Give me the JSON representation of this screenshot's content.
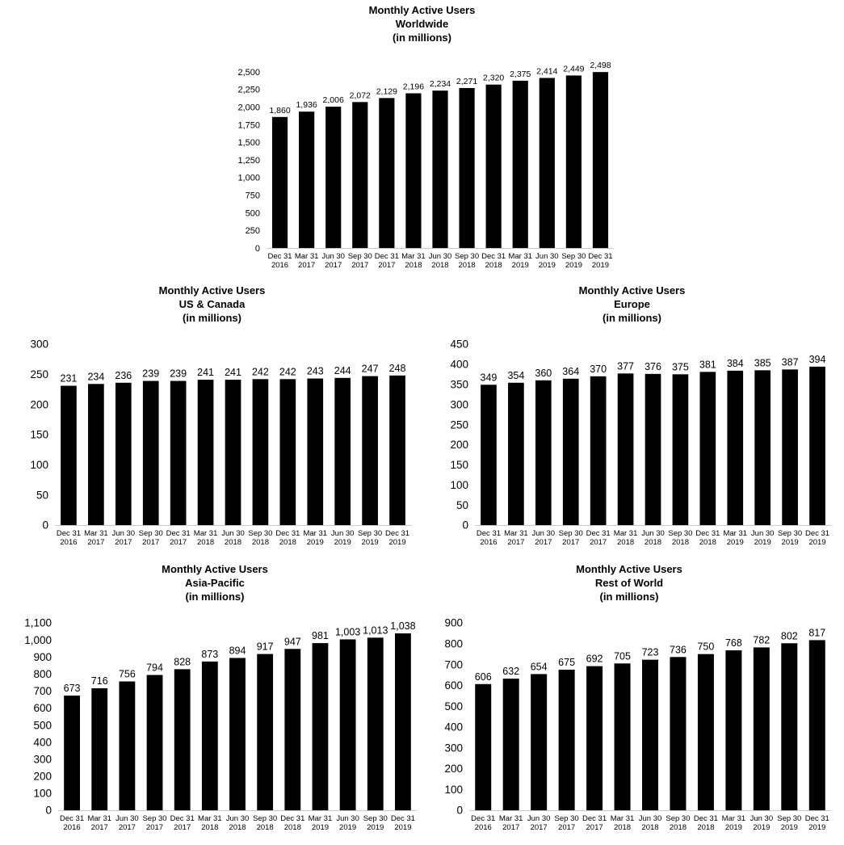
{
  "page": {
    "background": "#ffffff",
    "text_color": "#000000"
  },
  "chart_data": [
    {
      "id": "worldwide",
      "type": "bar",
      "title_lines": [
        "Monthly Active Users",
        "Worldwide",
        "(in millions)"
      ],
      "categories": [
        "Dec 31 2016",
        "Mar 31 2017",
        "Jun 30 2017",
        "Sep 30 2017",
        "Dec 31 2017",
        "Mar 31 2018",
        "Jun 30 2018",
        "Sep 30 2018",
        "Dec 31 2018",
        "Mar 31 2019",
        "Jun 30 2019",
        "Sep 30 2019",
        "Dec 31 2019"
      ],
      "values": [
        1860,
        1936,
        2006,
        2072,
        2129,
        2196,
        2234,
        2271,
        2320,
        2375,
        2414,
        2449,
        2498
      ],
      "ylim": [
        0,
        2500
      ],
      "ytick_step": 250,
      "bar_color": "#000000",
      "grid": false,
      "legend": "none"
    },
    {
      "id": "us-canada",
      "type": "bar",
      "title_lines": [
        "Monthly Active Users",
        "US & Canada",
        "(in millions)"
      ],
      "categories": [
        "Dec 31 2016",
        "Mar 31 2017",
        "Jun 30 2017",
        "Sep 30 2017",
        "Dec 31 2017",
        "Mar 31 2018",
        "Jun 30 2018",
        "Sep 30 2018",
        "Dec 31 2018",
        "Mar 31 2019",
        "Jun 30 2019",
        "Sep 30 2019",
        "Dec 31 2019"
      ],
      "values": [
        231,
        234,
        236,
        239,
        239,
        241,
        241,
        242,
        242,
        243,
        244,
        247,
        248
      ],
      "ylim": [
        0,
        300
      ],
      "ytick_step": 50,
      "bar_color": "#000000",
      "grid": false,
      "legend": "none"
    },
    {
      "id": "europe",
      "type": "bar",
      "title_lines": [
        "Monthly Active Users",
        "Europe",
        "(in millions)"
      ],
      "categories": [
        "Dec 31 2016",
        "Mar 31 2017",
        "Jun 30 2017",
        "Sep 30 2017",
        "Dec 31 2017",
        "Mar 31 2018",
        "Jun 30 2018",
        "Sep 30 2018",
        "Dec 31 2018",
        "Mar 31 2019",
        "Jun 30 2019",
        "Sep 30 2019",
        "Dec 31 2019"
      ],
      "values": [
        349,
        354,
        360,
        364,
        370,
        377,
        376,
        375,
        381,
        384,
        385,
        387,
        394
      ],
      "ylim": [
        0,
        450
      ],
      "ytick_step": 50,
      "bar_color": "#000000",
      "grid": false,
      "legend": "none"
    },
    {
      "id": "asia-pacific",
      "type": "bar",
      "title_lines": [
        "Monthly Active Users",
        "Asia-Pacific",
        "(in millions)"
      ],
      "categories": [
        "Dec 31 2016",
        "Mar 31 2017",
        "Jun 30 2017",
        "Sep 30 2017",
        "Dec 31 2017",
        "Mar 31 2018",
        "Jun 30 2018",
        "Sep 30 2018",
        "Dec 31 2018",
        "Mar 31 2019",
        "Jun 30 2019",
        "Sep 30 2019",
        "Dec 31 2019"
      ],
      "values": [
        673,
        716,
        756,
        794,
        828,
        873,
        894,
        917,
        947,
        981,
        1003,
        1013,
        1038
      ],
      "ylim": [
        0,
        1100
      ],
      "ytick_step": 100,
      "bar_color": "#000000",
      "grid": false,
      "legend": "none"
    },
    {
      "id": "rest-of-world",
      "type": "bar",
      "title_lines": [
        "Monthly Active Users",
        "Rest of World",
        "(in millions)"
      ],
      "categories": [
        "Dec 31 2016",
        "Mar 31 2017",
        "Jun 30 2017",
        "Sep 30 2017",
        "Dec 31 2017",
        "Mar 31 2018",
        "Jun 30 2018",
        "Sep 30 2018",
        "Dec 31 2018",
        "Mar 31 2019",
        "Jun 30 2019",
        "Sep 30 2019",
        "Dec 31 2019"
      ],
      "values": [
        606,
        632,
        654,
        675,
        692,
        705,
        723,
        736,
        750,
        768,
        782,
        802,
        817
      ],
      "ylim": [
        0,
        900
      ],
      "ytick_step": 100,
      "bar_color": "#000000",
      "grid": false,
      "legend": "none"
    }
  ]
}
